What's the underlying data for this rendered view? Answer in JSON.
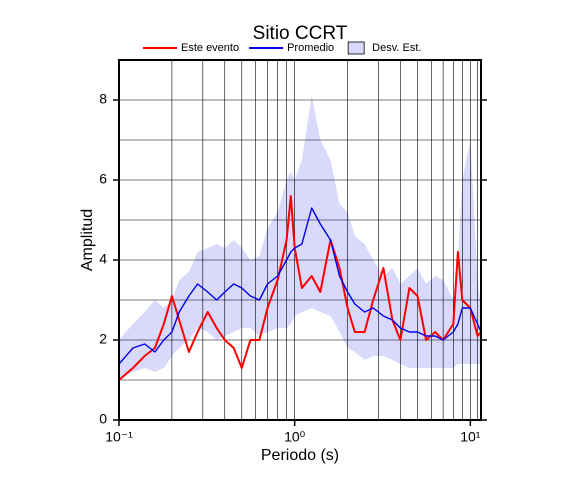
{
  "chart_data": {
    "type": "line",
    "title": "Sitio CCRT",
    "x_label": "Periodo (s)",
    "y_label": "Amplitud",
    "xscale": "log",
    "xlim": [
      0.1,
      11.5
    ],
    "ylim": [
      0,
      9
    ],
    "xticks": [
      {
        "value": 0.1,
        "label": "10⁻¹"
      },
      {
        "value": 1,
        "label": "10⁰"
      },
      {
        "value": 10,
        "label": "10¹"
      }
    ],
    "xgrid": [
      0.2,
      0.3,
      0.4,
      0.5,
      0.6,
      0.7,
      0.8,
      0.9,
      2,
      3,
      4,
      5,
      6,
      7,
      8,
      9,
      11
    ],
    "yticks": [
      0,
      2,
      4,
      6,
      8
    ],
    "ygrid": [
      1,
      3,
      5,
      7
    ],
    "grid": true,
    "legend": "top",
    "x": [
      0.1,
      0.12,
      0.14,
      0.16,
      0.18,
      0.2,
      0.22,
      0.25,
      0.28,
      0.32,
      0.36,
      0.4,
      0.45,
      0.5,
      0.56,
      0.63,
      0.7,
      0.8,
      0.9,
      0.95,
      1.0,
      1.1,
      1.25,
      1.4,
      1.6,
      1.8,
      2.0,
      2.2,
      2.5,
      2.8,
      3.2,
      3.6,
      4.0,
      4.5,
      5.0,
      5.6,
      6.3,
      7.0,
      8.0,
      8.5,
      9.0,
      10,
      11,
      11.5
    ],
    "band": {
      "name": "Desv. Est.",
      "color": "#d9d9fb",
      "upper": [
        2.0,
        2.4,
        2.7,
        3.0,
        2.8,
        3.0,
        3.5,
        3.7,
        4.2,
        4.3,
        4.4,
        4.3,
        4.5,
        4.3,
        4.0,
        4.1,
        4.8,
        5.2,
        6.0,
        6.2,
        6.0,
        6.5,
        8.1,
        7.0,
        6.5,
        5.4,
        5.2,
        4.6,
        4.4,
        4.0,
        3.6,
        3.8,
        3.4,
        3.6,
        3.8,
        3.4,
        3.6,
        3.5,
        3.0,
        4.0,
        6.0,
        7.0,
        3.5,
        2.8
      ],
      "lower": [
        1.0,
        1.2,
        1.3,
        1.2,
        1.3,
        1.6,
        1.8,
        2.0,
        2.3,
        2.2,
        2.0,
        2.1,
        2.2,
        2.3,
        2.3,
        2.1,
        2.2,
        2.3,
        2.3,
        2.4,
        2.6,
        2.7,
        2.8,
        2.7,
        2.6,
        2.2,
        1.8,
        1.7,
        1.5,
        1.6,
        1.6,
        1.5,
        1.4,
        1.3,
        1.3,
        1.3,
        1.3,
        1.3,
        1.3,
        1.4,
        1.4,
        1.4,
        1.4,
        1.4
      ]
    },
    "series": [
      {
        "name": "Este evento",
        "color": "#ff0000",
        "values": [
          1.0,
          1.3,
          1.6,
          1.8,
          2.4,
          3.1,
          2.5,
          1.7,
          2.2,
          2.7,
          2.3,
          2.0,
          1.8,
          1.3,
          2.0,
          2.0,
          2.8,
          3.5,
          4.5,
          5.6,
          4.3,
          3.3,
          3.6,
          3.2,
          4.5,
          3.8,
          2.8,
          2.2,
          2.2,
          3.0,
          3.8,
          2.5,
          2.0,
          3.3,
          3.1,
          2.0,
          2.2,
          2.0,
          2.4,
          4.2,
          3.0,
          2.8,
          2.1,
          2.2
        ]
      },
      {
        "name": "Promedio",
        "color": "#0000ee",
        "values": [
          1.4,
          1.8,
          1.9,
          1.7,
          2.0,
          2.2,
          2.7,
          3.1,
          3.4,
          3.2,
          3.0,
          3.2,
          3.4,
          3.3,
          3.1,
          3.0,
          3.4,
          3.6,
          4.0,
          4.2,
          4.3,
          4.4,
          5.3,
          4.9,
          4.5,
          3.6,
          3.2,
          2.9,
          2.7,
          2.8,
          2.6,
          2.5,
          2.3,
          2.2,
          2.2,
          2.1,
          2.1,
          2.0,
          2.2,
          2.4,
          2.8,
          2.8,
          2.4,
          2.2
        ]
      }
    ]
  }
}
